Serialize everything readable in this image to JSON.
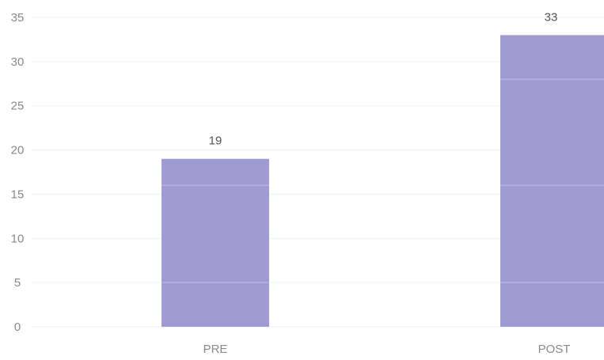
{
  "chart_data": {
    "type": "bar",
    "categories": [
      "PRE",
      "POST"
    ],
    "values": [
      19,
      33
    ],
    "data_labels": [
      "19",
      "33"
    ],
    "title": "",
    "xlabel": "",
    "ylabel": "",
    "ylim": [
      0,
      35
    ],
    "yticks": [
      0,
      5,
      10,
      15,
      20,
      25,
      30,
      35
    ],
    "grid": true,
    "legend": "none",
    "bar_color": "#a09ad2",
    "band_color": "#b4aede",
    "text_color": "#8a8a8a"
  }
}
